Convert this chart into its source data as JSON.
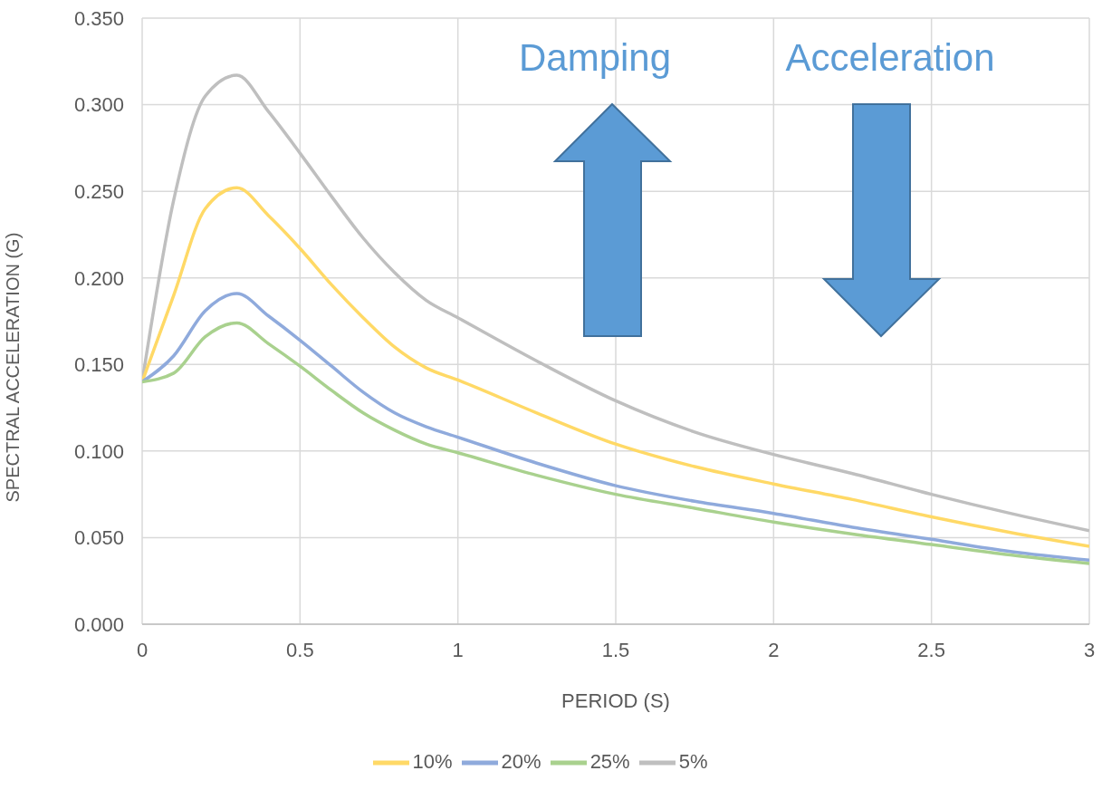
{
  "chart_data": {
    "type": "line",
    "xlabel": "PERIOD (S)",
    "ylabel": "SPECTRAL ACCELERATION (G)",
    "annotations": [
      "Damping",
      "Acceleration"
    ],
    "x": [
      0,
      0.1,
      0.2,
      0.3,
      0.4,
      0.5,
      0.6,
      0.7,
      0.8,
      0.9,
      1,
      1.25,
      1.5,
      1.75,
      2,
      2.25,
      2.5,
      2.75,
      3
    ],
    "series": [
      {
        "name": "5%",
        "color": "#bfbfbf",
        "values": [
          0.14,
          0.245,
          0.305,
          0.317,
          0.296,
          0.272,
          0.247,
          0.223,
          0.203,
          0.187,
          0.177,
          0.152,
          0.129,
          0.111,
          0.098,
          0.087,
          0.075,
          0.064,
          0.054
        ]
      },
      {
        "name": "10%",
        "color": "#ffd966",
        "values": [
          0.14,
          0.19,
          0.24,
          0.252,
          0.236,
          0.217,
          0.196,
          0.177,
          0.16,
          0.148,
          0.141,
          0.122,
          0.104,
          0.091,
          0.081,
          0.072,
          0.062,
          0.053,
          0.045
        ]
      },
      {
        "name": "20%",
        "color": "#8faadc",
        "values": [
          0.14,
          0.155,
          0.181,
          0.191,
          0.178,
          0.164,
          0.149,
          0.134,
          0.122,
          0.114,
          0.108,
          0.093,
          0.08,
          0.071,
          0.064,
          0.056,
          0.049,
          0.042,
          0.037
        ]
      },
      {
        "name": "25%",
        "color": "#a9d18e",
        "values": [
          0.14,
          0.145,
          0.166,
          0.174,
          0.162,
          0.149,
          0.135,
          0.122,
          0.112,
          0.104,
          0.099,
          0.086,
          0.075,
          0.067,
          0.059,
          0.052,
          0.046,
          0.04,
          0.035
        ]
      }
    ],
    "xlim": [
      0,
      3
    ],
    "xticks": [
      0,
      0.5,
      1,
      1.5,
      2,
      2.5,
      3
    ],
    "ylim": [
      0,
      0.35
    ],
    "yticks": [
      {
        "value": 0,
        "label": "0.000"
      },
      {
        "value": 0.05,
        "label": "0.050"
      },
      {
        "value": 0.1,
        "label": "0.100"
      },
      {
        "value": 0.15,
        "label": "0.150"
      },
      {
        "value": 0.2,
        "label": "0.200"
      },
      {
        "value": 0.25,
        "label": "0.250"
      },
      {
        "value": 0.3,
        "label": "0.300"
      },
      {
        "value": 0.35,
        "label": "0.350"
      }
    ],
    "grid": true,
    "legend": "bottom",
    "marker": "none",
    "line_style": "solid"
  }
}
